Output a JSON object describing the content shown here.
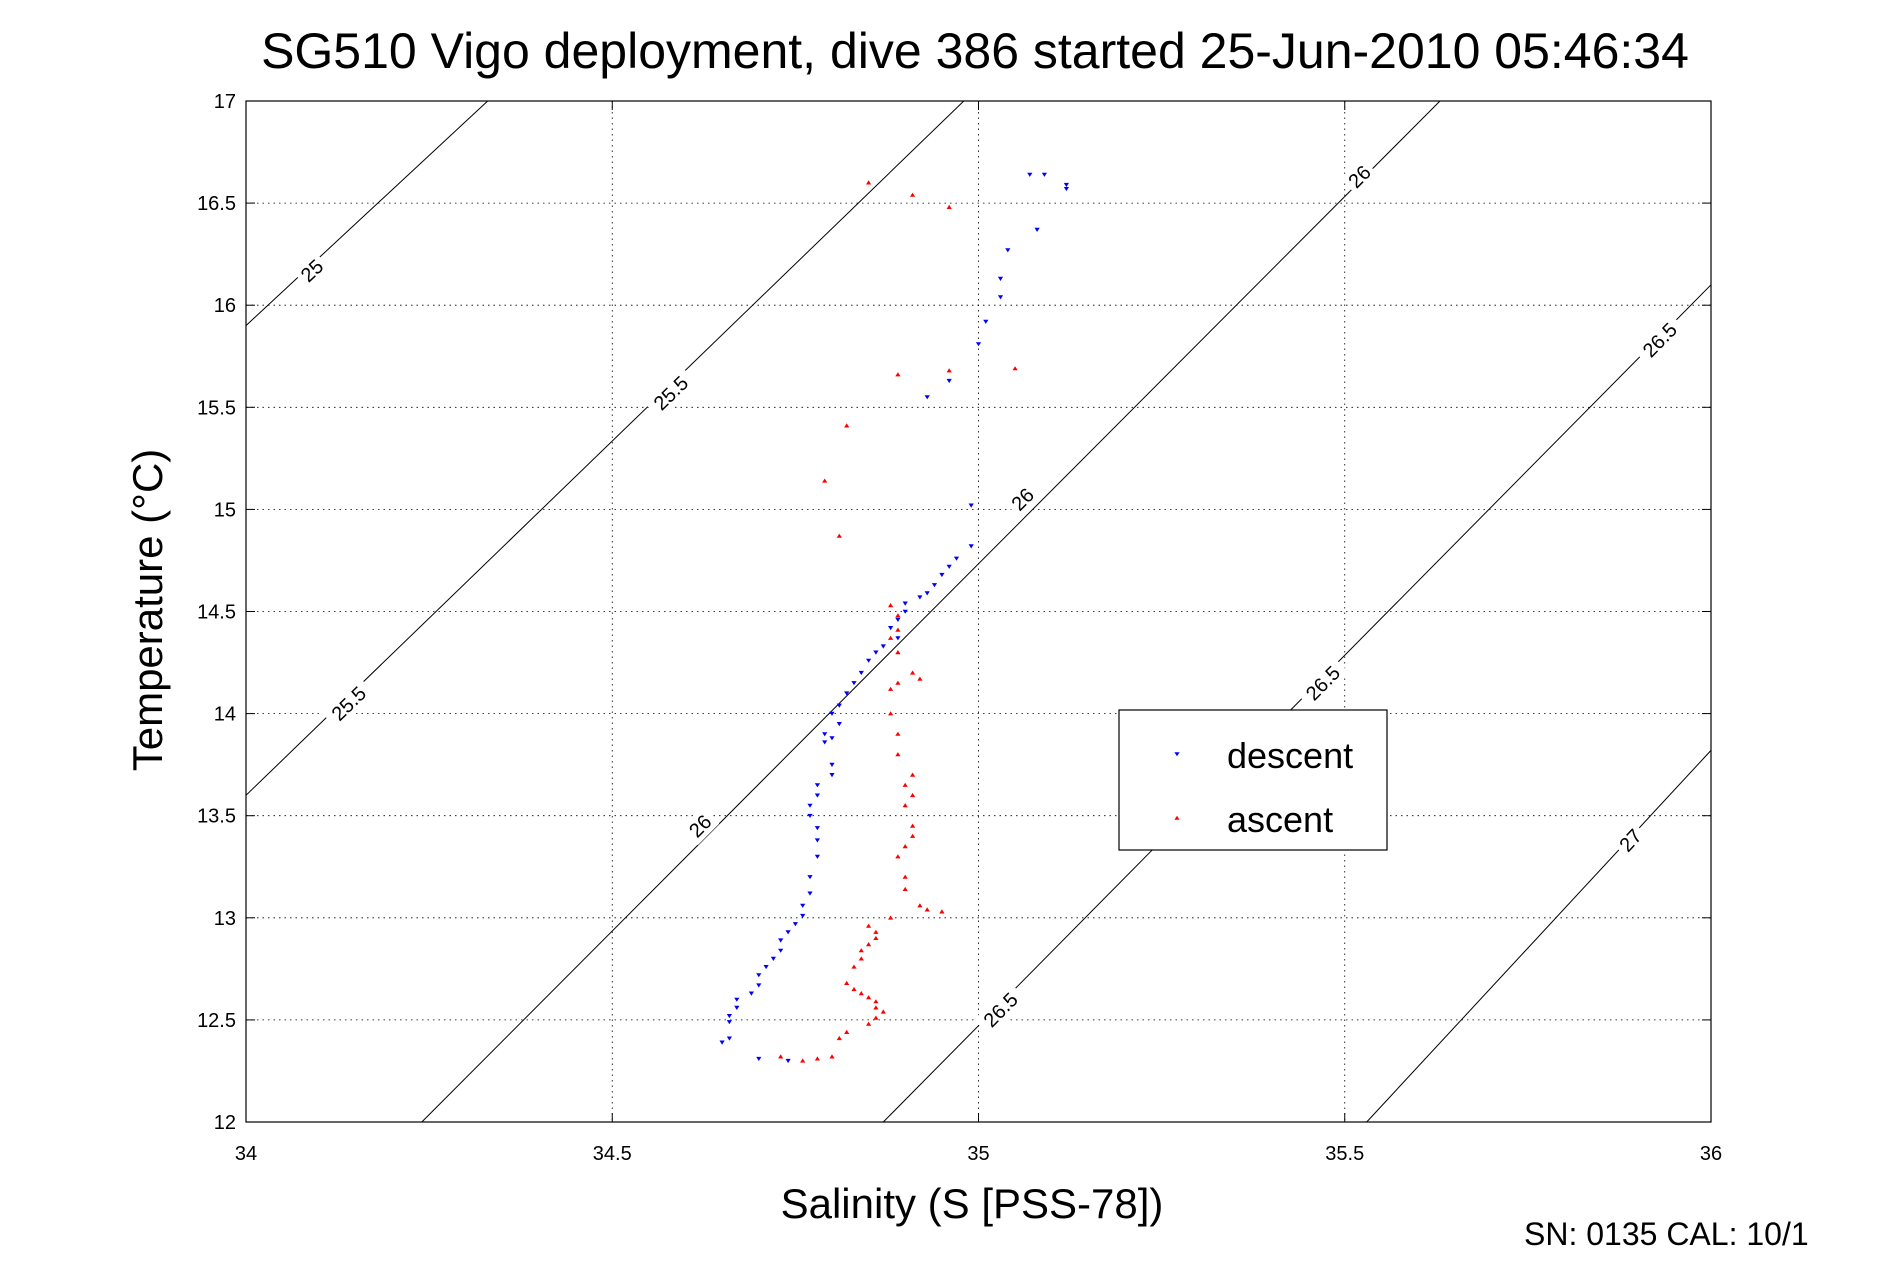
{
  "chart_data": {
    "type": "scatter",
    "title": "SG510 Vigo deployment, dive 386 started 25-Jun-2010 05:46:34",
    "xlabel": "Salinity (S [PSS-78])",
    "ylabel": "Temperature (°C)",
    "xlim": [
      34,
      36
    ],
    "ylim": [
      12,
      17
    ],
    "x_ticks": [
      "34",
      "34.5",
      "35",
      "35.5",
      "36"
    ],
    "y_ticks": [
      "12",
      "12.5",
      "13",
      "13.5",
      "14",
      "14.5",
      "15",
      "15.5",
      "16",
      "16.5",
      "17"
    ],
    "grid": true,
    "legend_position": "center-right",
    "footer": "SN: 0135  CAL: 10/1",
    "colors": {
      "descent": "#0000ff",
      "ascent": "#ff0000",
      "contour": "#000000"
    },
    "density_contours": [
      {
        "level": 25,
        "points": [
          [
            34,
            15.9
          ],
          [
            34.33,
            17
          ]
        ],
        "labels": [
          {
            "text": "25",
            "s": 34.09,
            "t": 16.17
          }
        ]
      },
      {
        "level": 25.5,
        "points": [
          [
            34,
            13.6
          ],
          [
            34.98,
            17
          ]
        ],
        "labels": [
          {
            "text": "25.5",
            "s": 34.58,
            "t": 15.57
          },
          {
            "text": "25.5",
            "s": 34.14,
            "t": 14.05
          }
        ]
      },
      {
        "level": 26,
        "points": [
          [
            34.24,
            12
          ],
          [
            35.63,
            17
          ]
        ],
        "labels": [
          {
            "text": "26",
            "s": 35.52,
            "t": 16.63
          },
          {
            "text": "26",
            "s": 35.06,
            "t": 15.05
          },
          {
            "text": "26",
            "s": 34.62,
            "t": 13.45
          }
        ]
      },
      {
        "level": 26.5,
        "points": [
          [
            34.87,
            12
          ],
          [
            36,
            16.1
          ]
        ],
        "labels": [
          {
            "text": "26.5",
            "s": 35.93,
            "t": 15.83
          },
          {
            "text": "26.5",
            "s": 35.47,
            "t": 14.15
          },
          {
            "text": "26.5",
            "s": 35.03,
            "t": 12.55
          }
        ]
      },
      {
        "level": 27,
        "points": [
          [
            35.53,
            12
          ],
          [
            36,
            13.82
          ]
        ],
        "labels": [
          {
            "text": "27",
            "s": 35.89,
            "t": 13.38
          }
        ]
      }
    ],
    "series": [
      {
        "name": "descent",
        "marker": "triangle-down",
        "points": [
          [
            35.07,
            16.64
          ],
          [
            35.09,
            16.64
          ],
          [
            35.12,
            16.59
          ],
          [
            35.12,
            16.57
          ],
          [
            35.08,
            16.37
          ],
          [
            35.04,
            16.27
          ],
          [
            35.03,
            16.13
          ],
          [
            35.03,
            16.04
          ],
          [
            35.01,
            15.92
          ],
          [
            35.0,
            15.81
          ],
          [
            34.96,
            15.63
          ],
          [
            34.93,
            15.55
          ],
          [
            34.99,
            15.02
          ],
          [
            34.99,
            14.82
          ],
          [
            34.97,
            14.76
          ],
          [
            34.96,
            14.72
          ],
          [
            34.95,
            14.68
          ],
          [
            34.94,
            14.63
          ],
          [
            34.93,
            14.59
          ],
          [
            34.92,
            14.57
          ],
          [
            34.9,
            14.54
          ],
          [
            34.9,
            14.5
          ],
          [
            34.89,
            14.46
          ],
          [
            34.88,
            14.42
          ],
          [
            34.89,
            14.37
          ],
          [
            34.87,
            14.33
          ],
          [
            34.86,
            14.3
          ],
          [
            34.85,
            14.26
          ],
          [
            34.84,
            14.2
          ],
          [
            34.83,
            14.15
          ],
          [
            34.82,
            14.1
          ],
          [
            34.81,
            14.04
          ],
          [
            34.8,
            14.0
          ],
          [
            34.81,
            13.95
          ],
          [
            34.79,
            13.9
          ],
          [
            34.8,
            13.88
          ],
          [
            34.79,
            13.86
          ],
          [
            34.8,
            13.75
          ],
          [
            34.8,
            13.7
          ],
          [
            34.78,
            13.65
          ],
          [
            34.78,
            13.6
          ],
          [
            34.77,
            13.55
          ],
          [
            34.77,
            13.5
          ],
          [
            34.78,
            13.44
          ],
          [
            34.78,
            13.38
          ],
          [
            34.78,
            13.3
          ],
          [
            34.77,
            13.2
          ],
          [
            34.77,
            13.12
          ],
          [
            34.76,
            13.06
          ],
          [
            34.76,
            13.01
          ],
          [
            34.75,
            12.97
          ],
          [
            34.74,
            12.93
          ],
          [
            34.73,
            12.89
          ],
          [
            34.73,
            12.84
          ],
          [
            34.72,
            12.8
          ],
          [
            34.71,
            12.76
          ],
          [
            34.7,
            12.72
          ],
          [
            34.7,
            12.67
          ],
          [
            34.69,
            12.63
          ],
          [
            34.67,
            12.6
          ],
          [
            34.67,
            12.56
          ],
          [
            34.66,
            12.52
          ],
          [
            34.66,
            12.49
          ],
          [
            34.66,
            12.41
          ],
          [
            34.65,
            12.39
          ],
          [
            34.7,
            12.31
          ],
          [
            34.74,
            12.3
          ]
        ]
      },
      {
        "name": "ascent",
        "marker": "triangle-up",
        "points": [
          [
            34.85,
            16.6
          ],
          [
            34.91,
            16.54
          ],
          [
            34.96,
            16.48
          ],
          [
            34.96,
            15.68
          ],
          [
            34.89,
            15.66
          ],
          [
            35.05,
            15.69
          ],
          [
            34.82,
            15.41
          ],
          [
            34.79,
            15.14
          ],
          [
            34.81,
            14.87
          ],
          [
            34.88,
            14.53
          ],
          [
            34.89,
            14.48
          ],
          [
            34.89,
            14.41
          ],
          [
            34.88,
            14.37
          ],
          [
            34.89,
            14.3
          ],
          [
            34.91,
            14.2
          ],
          [
            34.92,
            14.17
          ],
          [
            34.89,
            14.15
          ],
          [
            34.88,
            14.12
          ],
          [
            34.88,
            14.0
          ],
          [
            34.89,
            13.9
          ],
          [
            34.89,
            13.8
          ],
          [
            34.91,
            13.7
          ],
          [
            34.9,
            13.65
          ],
          [
            34.91,
            13.6
          ],
          [
            34.9,
            13.55
          ],
          [
            34.91,
            13.45
          ],
          [
            34.91,
            13.4
          ],
          [
            34.9,
            13.35
          ],
          [
            34.89,
            13.3
          ],
          [
            34.9,
            13.2
          ],
          [
            34.9,
            13.14
          ],
          [
            34.92,
            13.06
          ],
          [
            34.93,
            13.04
          ],
          [
            34.95,
            13.03
          ],
          [
            34.88,
            13.0
          ],
          [
            34.85,
            12.96
          ],
          [
            34.86,
            12.93
          ],
          [
            34.86,
            12.9
          ],
          [
            34.85,
            12.87
          ],
          [
            34.84,
            12.84
          ],
          [
            34.84,
            12.8
          ],
          [
            34.83,
            12.76
          ],
          [
            34.82,
            12.68
          ],
          [
            34.83,
            12.65
          ],
          [
            34.84,
            12.63
          ],
          [
            34.85,
            12.61
          ],
          [
            34.86,
            12.59
          ],
          [
            34.86,
            12.56
          ],
          [
            34.87,
            12.54
          ],
          [
            34.86,
            12.51
          ],
          [
            34.85,
            12.48
          ],
          [
            34.82,
            12.44
          ],
          [
            34.81,
            12.41
          ],
          [
            34.8,
            12.32
          ],
          [
            34.78,
            12.31
          ],
          [
            34.76,
            12.3
          ],
          [
            34.73,
            12.32
          ]
        ]
      }
    ]
  }
}
